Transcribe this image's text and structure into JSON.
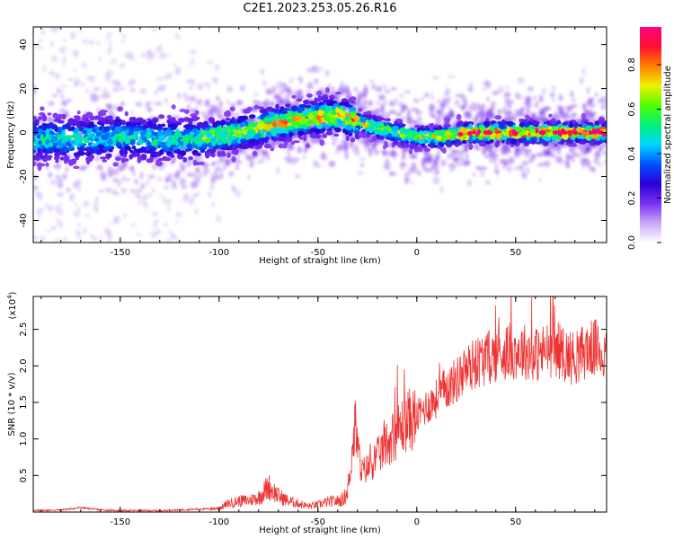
{
  "title": "C2E1.2023.253.05.26.R16",
  "chart_data": [
    {
      "type": "heatmap",
      "title": "",
      "xlabel": "Height of straight line (km)",
      "ylabel": "Frequency (Hz)",
      "xlim": [
        -194,
        96
      ],
      "ylim": [
        -50,
        48
      ],
      "xticks": [
        -150,
        -100,
        -50,
        0,
        50
      ],
      "yticks": [
        -40,
        -20,
        0,
        20,
        40
      ],
      "colorbar": {
        "label": "Normalized spectral amplitude",
        "range": [
          0.0,
          0.97
        ],
        "ticks": [
          0.0,
          0.2,
          0.4,
          0.6,
          0.8
        ],
        "colormap": [
          "#ffffff",
          "#c9a8f5",
          "#7a2ff0",
          "#2a00d8",
          "#0050ff",
          "#00d8ff",
          "#00f07a",
          "#50ff00",
          "#f0f000",
          "#ff8000",
          "#ff1030",
          "#ff0080"
        ]
      },
      "ridge": {
        "description_points_height_km": [
          -190,
          -170,
          -150,
          -130,
          -110,
          -90,
          -75,
          -60,
          -50,
          -40,
          -30,
          -20,
          -10,
          0,
          10,
          20,
          30,
          40,
          50,
          60,
          70,
          80,
          90,
          95
        ],
        "peak_frequency_hz": [
          -3,
          -3,
          -2,
          -3,
          -3,
          0,
          3,
          6,
          7,
          8,
          5,
          2,
          0,
          -2,
          -2,
          -1,
          0,
          0,
          0,
          0,
          0,
          0,
          0,
          0
        ]
      }
    },
    {
      "type": "line",
      "title": "",
      "xlabel": "Height of straight line (km)",
      "ylabel": "SNR (10 * v/v)",
      "scale_note": "(x10",
      "scale_exp": "4",
      "scale_close": ")",
      "xlim": [
        -194,
        96
      ],
      "ylim": [
        0,
        2.95
      ],
      "xticks": [
        -150,
        -100,
        -50,
        0,
        50
      ],
      "yticks": [
        0.5,
        1.0,
        1.5,
        2.0,
        2.5
      ],
      "series": [
        {
          "color": "#ee3333",
          "x": [
            -194,
            -180,
            -170,
            -160,
            -150,
            -140,
            -130,
            -120,
            -110,
            -100,
            -95,
            -90,
            -85,
            -80,
            -75,
            -70,
            -65,
            -60,
            -55,
            -50,
            -45,
            -40,
            -37,
            -35,
            -33,
            -31,
            -30,
            -28,
            -25,
            -20,
            -15,
            -10,
            -5,
            0,
            5,
            10,
            15,
            20,
            25,
            30,
            35,
            40,
            45,
            50,
            55,
            60,
            65,
            70,
            75,
            80,
            85,
            90,
            96
          ],
          "y": [
            0.02,
            0.03,
            0.06,
            0.03,
            0.02,
            0.02,
            0.02,
            0.03,
            0.04,
            0.05,
            0.12,
            0.15,
            0.16,
            0.2,
            0.35,
            0.22,
            0.15,
            0.12,
            0.08,
            0.1,
            0.14,
            0.15,
            0.18,
            0.3,
            0.75,
            1.2,
            0.9,
            0.55,
            0.6,
            0.75,
            0.95,
            1.1,
            1.25,
            1.3,
            1.45,
            1.55,
            1.7,
            1.8,
            1.95,
            2.05,
            2.1,
            2.15,
            2.2,
            2.2,
            2.2,
            2.15,
            2.2,
            2.25,
            2.15,
            2.1,
            2.2,
            2.25,
            2.1
          ]
        }
      ]
    }
  ]
}
